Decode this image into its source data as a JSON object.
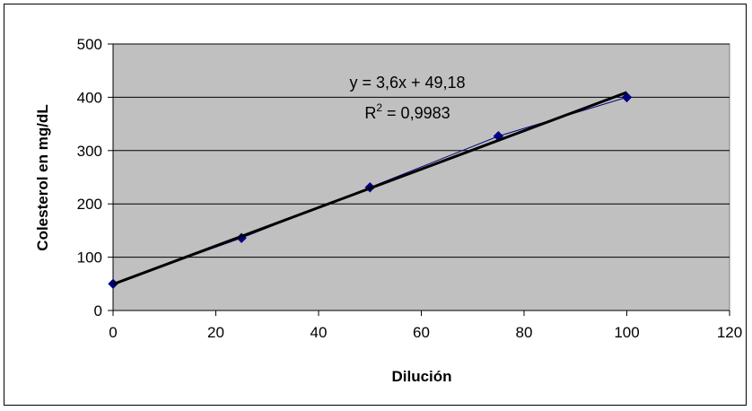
{
  "chart_data": {
    "type": "scatter",
    "title": "",
    "xlabel": "Dilución",
    "ylabel": "Colesterol en mg/dL",
    "xlim": [
      0,
      120
    ],
    "ylim": [
      0,
      500
    ],
    "x_ticks": [
      "0",
      "20",
      "40",
      "60",
      "80",
      "100",
      "120"
    ],
    "y_ticks": [
      "0",
      "100",
      "200",
      "300",
      "400",
      "500"
    ],
    "grid": "horizontal",
    "plot_background": "#c0c0c0",
    "series": [
      {
        "color": "#000080",
        "marker": "diamond",
        "x": [
          0,
          25,
          50,
          75,
          100
        ],
        "y": [
          50,
          136,
          231,
          327,
          400
        ]
      }
    ],
    "trendline": {
      "type": "linear",
      "slope": 3.6,
      "intercept": 49.18,
      "color": "#000000",
      "x_range": [
        0,
        100
      ]
    },
    "annotations": {
      "equation": "y = 3,6x + 49,18",
      "r_squared_prefix": "R",
      "r_squared_sup": "2",
      "r_squared_value": " = 0,9983"
    }
  }
}
